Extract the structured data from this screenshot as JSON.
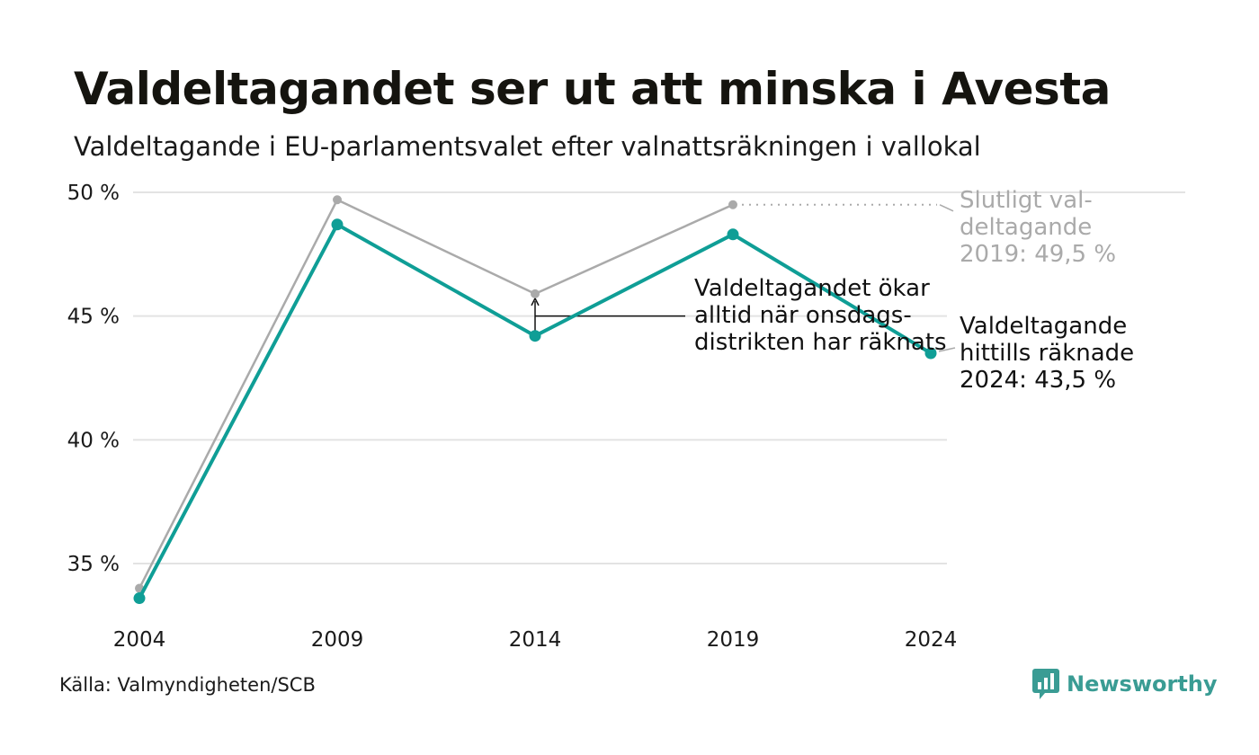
{
  "header": {
    "title": "Valdeltagandet ser ut att minska i Avesta",
    "subtitle": "Valdeltagande i EU-parlamentsvalet efter valnattsräkningen i vallokal"
  },
  "chart_data": {
    "type": "line",
    "x": [
      2004,
      2009,
      2014,
      2019,
      2024
    ],
    "x_tick_labels": [
      "2004",
      "2009",
      "2014",
      "2019",
      "2024"
    ],
    "y_ticks": [
      35,
      40,
      45,
      50
    ],
    "y_tick_labels": [
      "35 %",
      "40 %",
      "45 %",
      "50 %"
    ],
    "ylim": [
      33,
      50
    ],
    "grid": true,
    "series": [
      {
        "values": [
          34.0,
          49.7,
          45.9,
          49.5,
          null
        ],
        "color": "#aaaaaa"
      },
      {
        "values": [
          33.6,
          48.7,
          44.2,
          48.3,
          43.5
        ],
        "color": "#0f9e96"
      }
    ],
    "annotations": {
      "final_turnout": [
        "Slutligt val-",
        "deltagande",
        "2019: 49,5 %"
      ],
      "wednesday_count": [
        "Valdeltagandet ökar",
        "alltid när onsdags-",
        "distrikten har räknats"
      ],
      "current_turnout": [
        "Valdeltagande",
        "hittills räknade",
        "2024: 43,5 %"
      ]
    }
  },
  "footer": {
    "source": "Källa: Valmyndigheten/SCB",
    "brand": "Newsworthy",
    "brand_icon": "newsworthy-logo-icon"
  }
}
